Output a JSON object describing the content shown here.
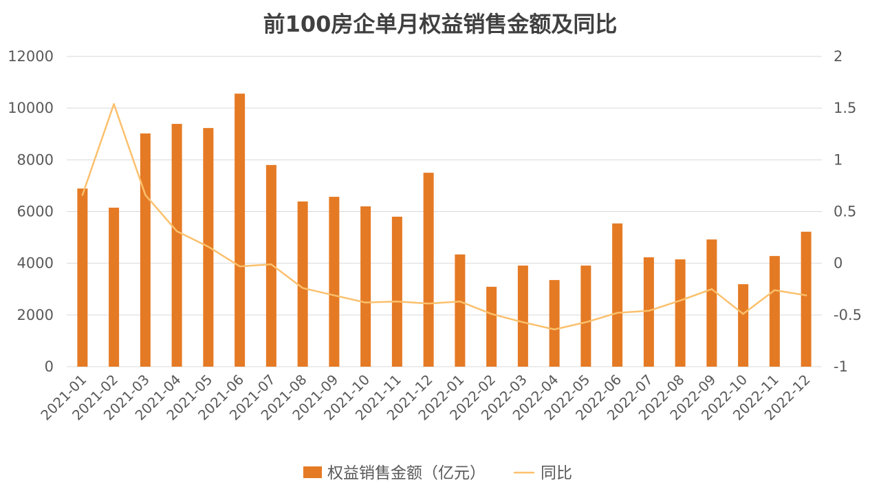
{
  "chart_data": {
    "type": "bar",
    "title": "前100房企单月权益销售金额及同比",
    "categories": [
      "2021-01",
      "2021-02",
      "2021-03",
      "2021-04",
      "2021-05",
      "2021-06",
      "2021-07",
      "2021-08",
      "2021-09",
      "2021-10",
      "2021-11",
      "2021-12",
      "2022-01",
      "2022-02",
      "2022-03",
      "2022-04",
      "2022-05",
      "2022-06",
      "2022-07",
      "2022-08",
      "2022-09",
      "2022-10",
      "2022-11",
      "2022-12"
    ],
    "series": [
      {
        "name": "权益销售金额（亿元）",
        "type": "bar",
        "axis": "left",
        "color": "#e57a24",
        "values": [
          6890,
          6150,
          9020,
          9390,
          9230,
          10560,
          7800,
          6390,
          6570,
          6200,
          5800,
          7500,
          4340,
          3090,
          3910,
          3350,
          3910,
          5540,
          4230,
          4150,
          4920,
          3190,
          4280,
          5220
        ]
      },
      {
        "name": "同比",
        "type": "line",
        "axis": "right",
        "color": "#fbc06c",
        "values": [
          0.66,
          1.54,
          0.66,
          0.31,
          0.16,
          -0.03,
          -0.01,
          -0.24,
          -0.31,
          -0.38,
          -0.37,
          -0.39,
          -0.37,
          -0.49,
          -0.57,
          -0.64,
          -0.57,
          -0.48,
          -0.46,
          -0.36,
          -0.25,
          -0.49,
          -0.26,
          -0.31
        ]
      }
    ],
    "yticks": [
      "0",
      "2000",
      "4000",
      "6000",
      "8000",
      "10000",
      "12000"
    ],
    "y2ticks": [
      "-1",
      "-0.5",
      "0",
      "0.5",
      "1",
      "1.5",
      "2"
    ],
    "ylim": [
      0,
      12000
    ],
    "y2lim": [
      -1,
      2
    ],
    "grid": true,
    "legend": "bottom"
  }
}
